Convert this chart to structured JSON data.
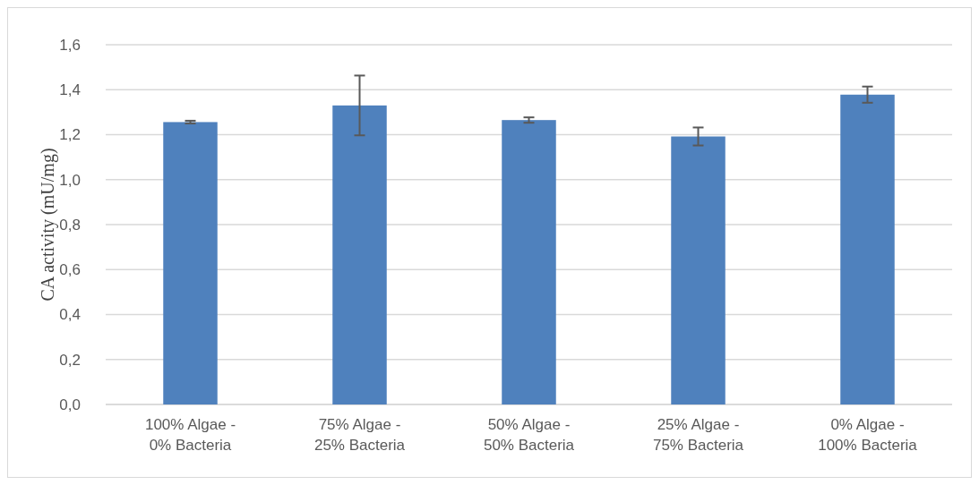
{
  "chart_data": {
    "type": "bar",
    "ylabel": "CA activity (mU/mg)",
    "categories": [
      "100% Algae - 0% Bacteria",
      "75% Algae - 25% Bacteria",
      "50% Algae - 50% Bacteria",
      "25% Algae - 75% Bacteria",
      "0% Algae - 100% Bacteria"
    ],
    "values": [
      1.256,
      1.33,
      1.265,
      1.192,
      1.378
    ],
    "errors": [
      0.006,
      0.133,
      0.012,
      0.04,
      0.036
    ],
    "color": "#4f81bd",
    "ylim": [
      0,
      1.6
    ],
    "yticks": [
      {
        "value": 0,
        "label": "0,0"
      },
      {
        "value": 0.2,
        "label": "0,2"
      },
      {
        "value": 0.4,
        "label": "0,4"
      },
      {
        "value": 0.6,
        "label": "0,6"
      },
      {
        "value": 0.8,
        "label": "0,8"
      },
      {
        "value": 1,
        "label": "1,0"
      },
      {
        "value": 1.2,
        "label": "1,2"
      },
      {
        "value": 1.4,
        "label": "1,4"
      },
      {
        "value": 1.6,
        "label": "1,6"
      }
    ],
    "grid": "y"
  }
}
